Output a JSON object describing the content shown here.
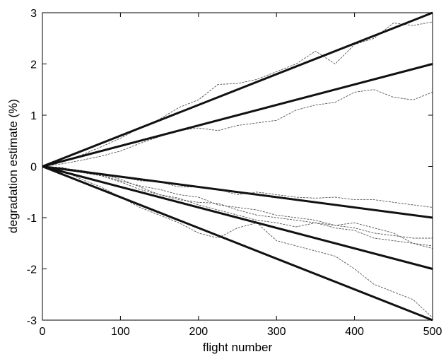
{
  "chart_data": {
    "type": "line",
    "title": "",
    "xlabel": "flight number",
    "ylabel": "degradation estimate (%)",
    "xlim": [
      0,
      500
    ],
    "ylim": [
      -3,
      3
    ],
    "xticks": [
      0,
      100,
      200,
      300,
      400,
      500
    ],
    "yticks": [
      -3,
      -2,
      -1,
      0,
      1,
      2,
      3
    ],
    "grid": false,
    "legend": "none",
    "series": [
      {
        "style": "true-trend",
        "x": [
          0,
          500
        ],
        "y": [
          0,
          3
        ]
      },
      {
        "style": "true-trend",
        "x": [
          0,
          500
        ],
        "y": [
          0,
          2
        ]
      },
      {
        "style": "true-trend",
        "x": [
          0,
          500
        ],
        "y": [
          0,
          -1
        ]
      },
      {
        "style": "true-trend",
        "x": [
          0,
          500
        ],
        "y": [
          0,
          -2
        ]
      },
      {
        "style": "true-trend",
        "x": [
          0,
          500
        ],
        "y": [
          0,
          -3
        ]
      },
      {
        "style": "estimate",
        "x": [
          0,
          25,
          50,
          75,
          100,
          125,
          150,
          175,
          200,
          225,
          250,
          275,
          300,
          325,
          350,
          375,
          400,
          425,
          450,
          475,
          500
        ],
        "y": [
          0,
          0.1,
          0.22,
          0.38,
          0.55,
          0.75,
          0.92,
          1.15,
          1.3,
          1.6,
          1.62,
          1.7,
          1.85,
          2.0,
          2.25,
          2.0,
          2.38,
          2.5,
          2.8,
          2.75,
          2.82
        ]
      },
      {
        "style": "estimate",
        "x": [
          0,
          25,
          50,
          75,
          100,
          125,
          150,
          175,
          200,
          225,
          250,
          275,
          300,
          325,
          350,
          375,
          400,
          425,
          450,
          475,
          500
        ],
        "y": [
          0,
          0.05,
          0.12,
          0.2,
          0.3,
          0.45,
          0.58,
          0.7,
          0.75,
          0.7,
          0.8,
          0.85,
          0.9,
          1.1,
          1.2,
          1.25,
          1.45,
          1.5,
          1.35,
          1.3,
          1.45
        ]
      },
      {
        "style": "estimate",
        "x": [
          0,
          25,
          50,
          75,
          100,
          125,
          150,
          175,
          200,
          225,
          250,
          275,
          300,
          325,
          350,
          375,
          400,
          425,
          450,
          475,
          500
        ],
        "y": [
          0,
          -0.05,
          -0.1,
          -0.18,
          -0.2,
          -0.28,
          -0.3,
          -0.4,
          -0.4,
          -0.45,
          -0.55,
          -0.5,
          -0.55,
          -0.6,
          -0.62,
          -0.6,
          -0.65,
          -0.65,
          -0.7,
          -0.75,
          -0.8
        ]
      },
      {
        "style": "estimate",
        "x": [
          0,
          25,
          50,
          75,
          100,
          125,
          150,
          175,
          200,
          225,
          250,
          275,
          300,
          325,
          350,
          375,
          400,
          425,
          450,
          475,
          500
        ],
        "y": [
          0,
          -0.03,
          -0.08,
          -0.15,
          -0.25,
          -0.4,
          -0.55,
          -0.65,
          -0.7,
          -0.72,
          -0.85,
          -0.95,
          -1.0,
          -1.05,
          -1.1,
          -1.15,
          -1.2,
          -1.3,
          -1.35,
          -1.4,
          -1.4
        ]
      },
      {
        "style": "estimate",
        "x": [
          0,
          25,
          50,
          75,
          100,
          125,
          150,
          175,
          200,
          225,
          250,
          275,
          300,
          325,
          350,
          375,
          400,
          425,
          450,
          475,
          500
        ],
        "y": [
          0,
          -0.05,
          -0.12,
          -0.18,
          -0.3,
          -0.45,
          -0.55,
          -0.62,
          -0.75,
          -0.85,
          -0.95,
          -1.05,
          -1.1,
          -1.18,
          -1.1,
          -1.2,
          -1.25,
          -1.4,
          -1.45,
          -1.5,
          -1.55
        ]
      },
      {
        "style": "estimate",
        "x": [
          0,
          25,
          50,
          75,
          100,
          125,
          150,
          175,
          200,
          225,
          250,
          275,
          300,
          325,
          350,
          375,
          400,
          425,
          450,
          475,
          500
        ],
        "y": [
          0,
          -0.02,
          -0.1,
          -0.18,
          -0.28,
          -0.38,
          -0.45,
          -0.55,
          -0.6,
          -0.75,
          -0.8,
          -0.85,
          -0.95,
          -1.0,
          -1.05,
          -1.15,
          -1.1,
          -1.2,
          -1.3,
          -1.5,
          -1.6
        ]
      },
      {
        "style": "estimate",
        "x": [
          0,
          25,
          50,
          75,
          100,
          125,
          150,
          175,
          200,
          225,
          250,
          275,
          300,
          325,
          350,
          375,
          400,
          425,
          450,
          475,
          500
        ],
        "y": [
          0,
          -0.08,
          -0.25,
          -0.4,
          -0.6,
          -0.8,
          -0.95,
          -1.1,
          -1.3,
          -1.4,
          -1.2,
          -1.1,
          -1.45,
          -1.55,
          -1.65,
          -1.75,
          -2.0,
          -2.3,
          -2.45,
          -2.6,
          -2.95
        ]
      }
    ]
  }
}
